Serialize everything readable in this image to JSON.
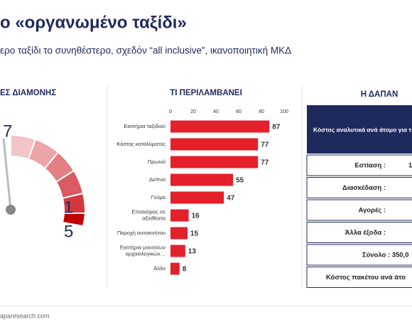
{
  "header": {
    "title": "ο «οργανωμένο ταξίδι»",
    "subtitle": "ερο ταξίδι το συνηθέστερο, σχεδόν “all inclusive”, ικανοποιητική ΜΚΔ"
  },
  "gauge": {
    "header": "ΕΣ ΔΙΑΜΟΝΗΣ",
    "labels": [
      "7",
      "1",
      "5"
    ]
  },
  "chart_data": {
    "type": "bar",
    "orientation": "horizontal",
    "title": "ΤΙ ΠΕΡΙΛΑΜΒΑΝΕΙ",
    "categories": [
      "Εισιτήρια ταξιδιού",
      "Κόστος καταλύματος",
      "Πρωινό",
      "Δείπνο",
      "Γεύμα",
      "Επισκέψεις σε αξιοθέατα",
      "Παροχή αυτοκινήτου",
      "Εισιτήρια μουσείων αρχαιολογικών…",
      "Άλλο"
    ],
    "values": [
      87,
      77,
      77,
      55,
      47,
      16,
      15,
      13,
      8
    ],
    "color": "#e4202a",
    "xlim": [
      0,
      100
    ],
    "xticks": [
      0,
      20,
      40,
      60,
      80,
      100
    ],
    "grid": false
  },
  "table": {
    "header": "Η ΔΑΠΑΝ",
    "caption": "Κόστος αναλυτικά ανά άτομο για τ",
    "rows": [
      {
        "label": "Εστίαση :",
        "value": "1"
      },
      {
        "label": "Διασκέδαση :"
      },
      {
        "label": "Αγορές :"
      },
      {
        "label": "Άλλα έξοδα :"
      },
      {
        "label": "Σύνολο : 350,0"
      },
      {
        "label": "Κόστος πακέτου ανά άτο"
      }
    ]
  },
  "footer": "aparesearch.com"
}
